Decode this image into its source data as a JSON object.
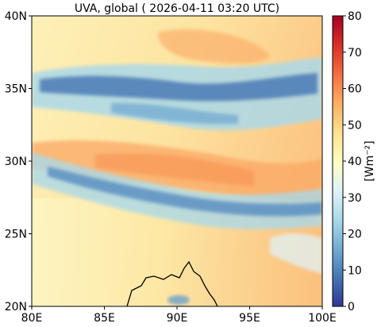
{
  "title": "UVA, global ( 2026-04-11 03:20 UTC)",
  "x_ticks": [
    {
      "value": 80,
      "label": "80E"
    },
    {
      "value": 85,
      "label": "85E"
    },
    {
      "value": 90,
      "label": "90E"
    },
    {
      "value": 95,
      "label": "95E"
    },
    {
      "value": 100,
      "label": "100E"
    }
  ],
  "y_ticks": [
    {
      "value": 20,
      "label": "20N"
    },
    {
      "value": 25,
      "label": "25N"
    },
    {
      "value": 30,
      "label": "30N"
    },
    {
      "value": 35,
      "label": "35N"
    },
    {
      "value": 40,
      "label": "40N"
    }
  ],
  "lon_range": [
    80,
    100
  ],
  "lat_range": [
    20,
    40
  ],
  "colorbar": {
    "label": "[Wm⁻²]",
    "range": [
      0,
      80
    ],
    "ticks": [
      "0",
      "10",
      "20",
      "30",
      "40",
      "50",
      "60",
      "70",
      "80"
    ],
    "colormap": "RdYlBu_r"
  },
  "map_content": {
    "variable": "UVA irradiance",
    "features": [
      "coastline"
    ],
    "cloud_bands": [
      {
        "lat_center": 35.5,
        "lon_start": 80,
        "lon_end": 100
      },
      {
        "lat_center": 27.8,
        "lon_start": 80,
        "lon_end": 100
      }
    ],
    "clear_band": {
      "lat_center": 30.5,
      "level": 55
    }
  }
}
